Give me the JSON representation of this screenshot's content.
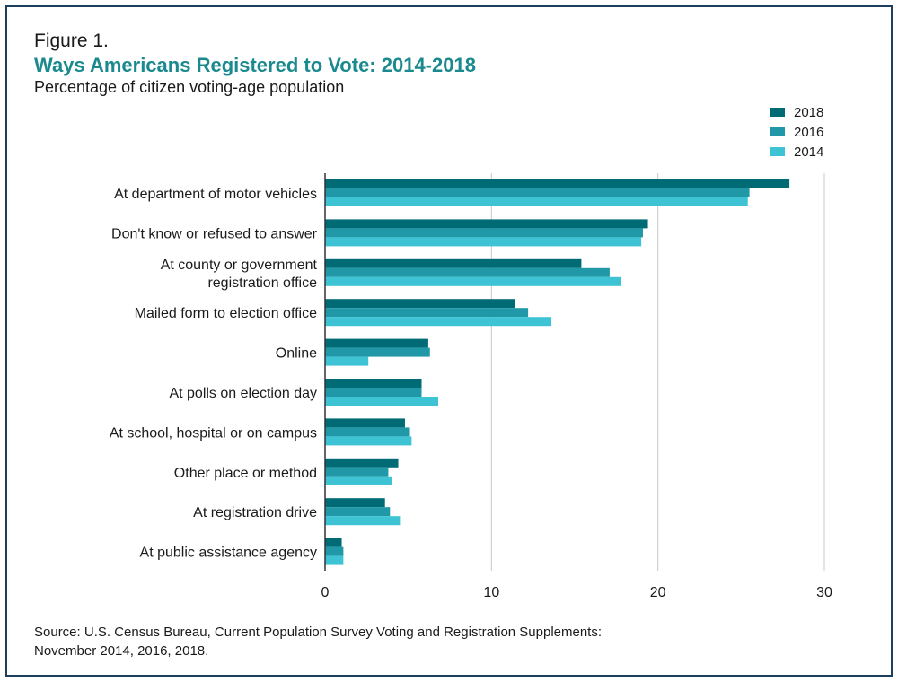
{
  "figure": {
    "label": "Figure 1.",
    "title": "Ways Americans Registered to Vote: 2014-2018",
    "subtitle": "Percentage of citizen voting-age population",
    "source_line1": "Source: U.S. Census Bureau, Current Population Survey Voting and Registration Supplements:",
    "source_line2": "November 2014, 2016, 2018."
  },
  "colors": {
    "title": "#1a8a8f",
    "border": "#1b3e5c",
    "grid": "#c8c8c8",
    "axis": "#333333",
    "text": "#1a1a1a"
  },
  "chart_data": {
    "type": "bar",
    "orientation": "horizontal",
    "grid": true,
    "legend_position": "top-right",
    "xlim": [
      0,
      30
    ],
    "xticks": [
      0,
      10,
      20,
      30
    ],
    "xlabel": "",
    "ylabel": "",
    "categories": [
      [
        "At department of motor vehicles"
      ],
      [
        "Don't know or refused to answer"
      ],
      [
        "At county or government",
        "registration office"
      ],
      [
        "Mailed form to election office"
      ],
      [
        "Online"
      ],
      [
        "At polls on election day"
      ],
      [
        "At school, hospital or on campus"
      ],
      [
        "Other place or method"
      ],
      [
        "At registration drive"
      ],
      [
        "At public assistance agency"
      ]
    ],
    "series": [
      {
        "name": "2018",
        "color": "#006b74",
        "values": [
          27.9,
          19.4,
          15.4,
          11.4,
          6.2,
          5.8,
          4.8,
          4.4,
          3.6,
          1.0
        ]
      },
      {
        "name": "2016",
        "color": "#2198a8",
        "values": [
          25.5,
          19.1,
          17.1,
          12.2,
          6.3,
          5.8,
          5.1,
          3.8,
          3.9,
          1.1
        ]
      },
      {
        "name": "2014",
        "color": "#3ec3d4",
        "values": [
          25.4,
          19.0,
          17.8,
          13.6,
          2.6,
          6.8,
          5.2,
          4.0,
          4.5,
          1.1
        ]
      }
    ]
  }
}
